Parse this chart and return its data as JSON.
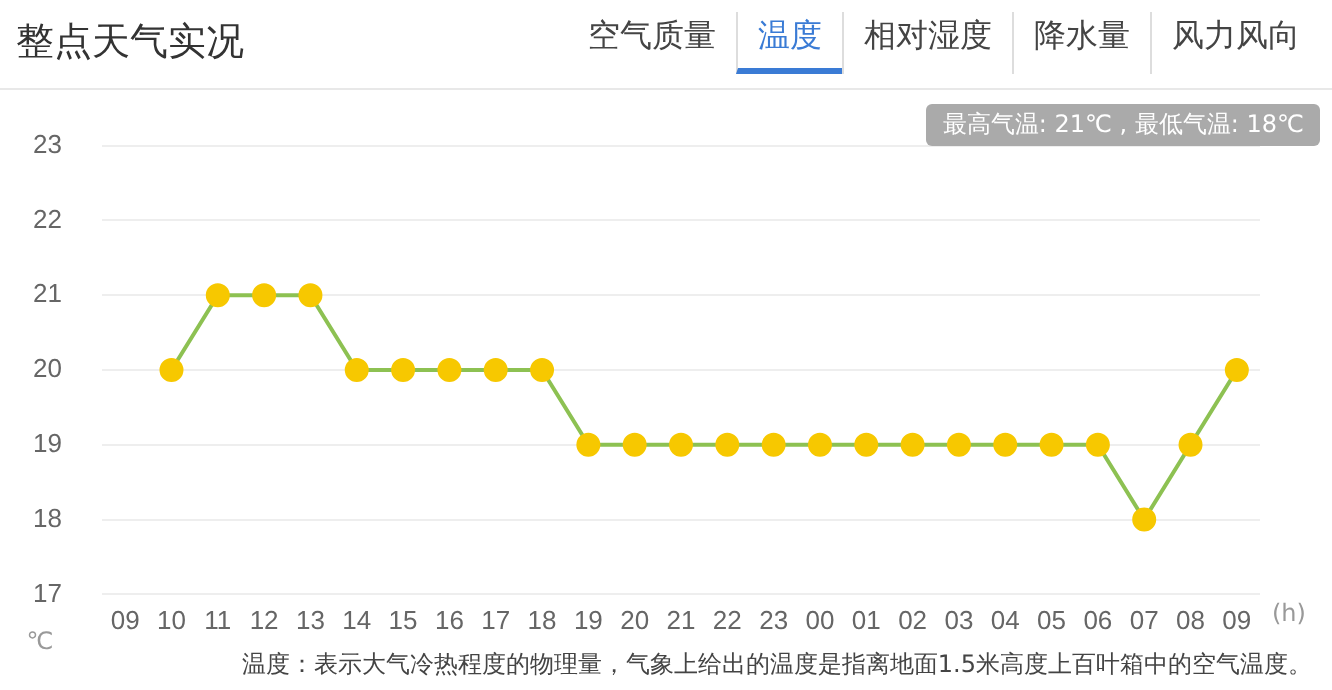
{
  "chart_data": {
    "type": "line",
    "title": "整点天气实况",
    "categories": [
      "09",
      "10",
      "11",
      "12",
      "13",
      "14",
      "15",
      "16",
      "17",
      "18",
      "19",
      "20",
      "21",
      "22",
      "23",
      "00",
      "01",
      "02",
      "03",
      "04",
      "05",
      "06",
      "07",
      "08",
      "09"
    ],
    "series": [
      {
        "color": "#8dc152",
        "values": [
          null,
          20,
          21,
          21,
          21,
          20,
          20,
          20,
          20,
          20,
          19,
          19,
          19,
          19,
          19,
          19,
          19,
          19,
          19,
          19,
          19,
          19,
          18,
          19,
          20
        ]
      }
    ],
    "ylim": [
      17,
      23
    ],
    "yticks": [
      17,
      18,
      19,
      20,
      21,
      22,
      23
    ],
    "grid": "y",
    "marker": "circle",
    "line_style": "solid",
    "legend": false,
    "xlabel": "(h)",
    "ylabel": "℃",
    "annotations": [
      "空气质量",
      "温度",
      "相对湿度",
      "降水量",
      "风力风向",
      "最高气温: 21℃ , 最低气温: 18℃",
      "温度：表示大气冷热程度的物理量，气象上给出的温度是指离地面1.5米高度上百叶箱中的空气温度。"
    ]
  }
}
